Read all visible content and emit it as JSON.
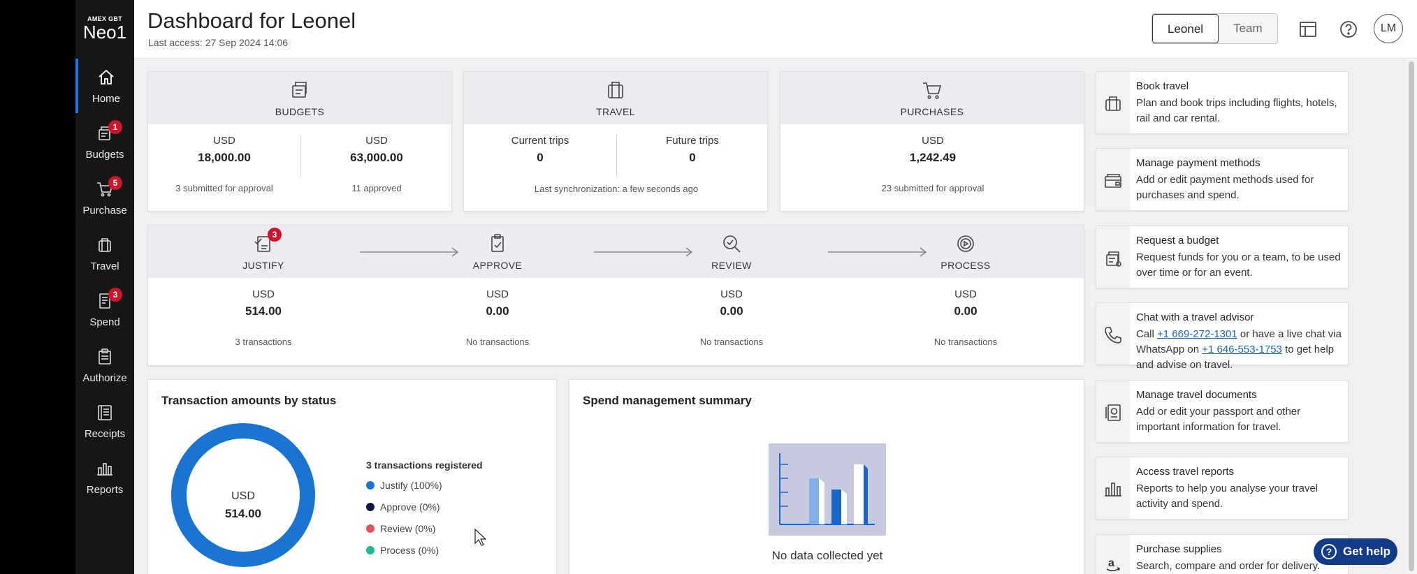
{
  "logo": {
    "small": "AMEX GBT",
    "big": "Neo1"
  },
  "nav": [
    {
      "label": "Home",
      "icon": "home-icon",
      "active": true,
      "badge": ""
    },
    {
      "label": "Budgets",
      "icon": "budget-icon",
      "badge": "1"
    },
    {
      "label": "Purchase",
      "icon": "cart-icon",
      "badge": "5"
    },
    {
      "label": "Travel",
      "icon": "suitcase-icon",
      "badge": ""
    },
    {
      "label": "Spend",
      "icon": "receipt-icon",
      "badge": "3"
    },
    {
      "label": "Authorize",
      "icon": "clipboard-icon",
      "badge": ""
    },
    {
      "label": "Receipts",
      "icon": "receipts-icon",
      "badge": ""
    },
    {
      "label": "Reports",
      "icon": "bar-chart-icon",
      "badge": ""
    }
  ],
  "header": {
    "title": "Dashboard for Leonel",
    "last_access": "Last access: 27 Sep 2024 14:06",
    "toggle": [
      "Leonel",
      "Team"
    ],
    "avatar": "LM"
  },
  "budgets": {
    "title": "BUDGETS",
    "left": {
      "currency": "USD",
      "amount": "18,000.00",
      "note": "3 submitted for approval"
    },
    "right": {
      "currency": "USD",
      "amount": "63,000.00",
      "note": "11 approved"
    }
  },
  "travel": {
    "title": "TRAVEL",
    "left": {
      "label": "Current trips",
      "value": "0"
    },
    "right": {
      "label": "Future trips",
      "value": "0"
    },
    "note": "Last synchronization: a few seconds ago"
  },
  "purchases": {
    "title": "PURCHASES",
    "currency": "USD",
    "amount": "1,242.49",
    "note": "23 submitted for approval"
  },
  "flow": [
    {
      "title": "JUSTIFY",
      "badge": "3",
      "currency": "USD",
      "amount": "514.00",
      "note": "3 transactions"
    },
    {
      "title": "APPROVE",
      "badge": "",
      "currency": "USD",
      "amount": "0.00",
      "note": "No transactions"
    },
    {
      "title": "REVIEW",
      "badge": "",
      "currency": "USD",
      "amount": "0.00",
      "note": "No transactions"
    },
    {
      "title": "PROCESS",
      "badge": "",
      "currency": "USD",
      "amount": "0.00",
      "note": "No transactions"
    }
  ],
  "txn_panel": {
    "title": "Transaction amounts by status",
    "center_currency": "USD",
    "center_amount": "514.00",
    "legend_title": "3 transactions registered",
    "legend": [
      {
        "label": "Justify (100%)",
        "color": "#1a74d2"
      },
      {
        "label": "Approve (0%)",
        "color": "#0e1a45"
      },
      {
        "label": "Review (0%)",
        "color": "#e8505b"
      },
      {
        "label": "Process (0%)",
        "color": "#1db894"
      }
    ]
  },
  "spend_panel": {
    "title": "Spend management summary",
    "empty_text": "No data collected yet"
  },
  "quick_links": [
    {
      "title": "Book travel",
      "desc": "Plan and book trips including flights, hotels, rail and car rental.",
      "icon": "suitcase-icon"
    },
    {
      "title": "Manage payment methods",
      "desc": "Add or edit payment methods used for purchases and spend.",
      "icon": "wallet-icon"
    },
    {
      "title": "Request a budget",
      "desc": "Request funds for you or a team, to be used over time or for an event.",
      "icon": "budget-request-icon"
    },
    {
      "title": "Chat with a travel advisor",
      "desc_pre": "Call ",
      "phone1": "+1 669-272-1301",
      "desc_mid": " or have a live chat via WhatsApp on ",
      "phone2": "+1 646-553-1753",
      "desc_post": " to get help and advise on travel.",
      "icon": "phone-icon"
    },
    {
      "title": "Manage travel documents",
      "desc": "Add or edit your passport and other important information for travel.",
      "icon": "passport-icon"
    },
    {
      "title": "Access travel reports",
      "desc": "Reports to help you analyse your travel activity and spend.",
      "icon": "bar-chart-icon"
    },
    {
      "title": "Purchase supplies",
      "desc": "Search, compare and order for delivery.",
      "icon": "amazon-icon"
    }
  ],
  "get_help": "Get help"
}
